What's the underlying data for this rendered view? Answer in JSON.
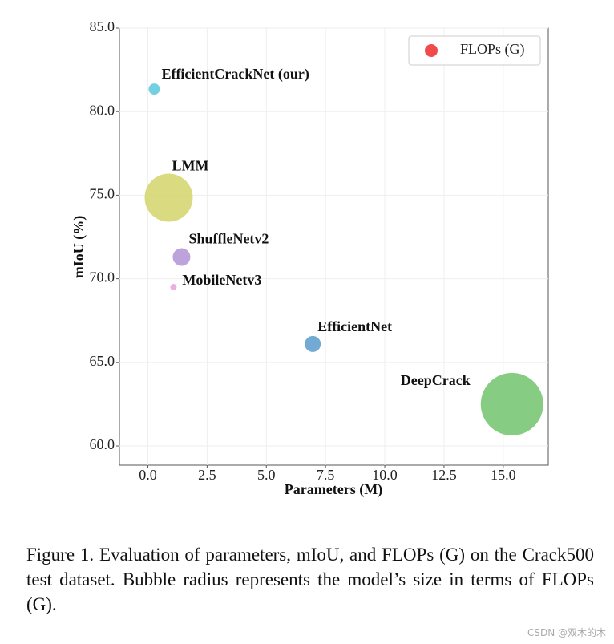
{
  "chart_data": {
    "type": "bubble",
    "xlabel": "Parameters (M)",
    "ylabel": "mIoU (%)",
    "labels": [
      "EfficientCrackNet (our)",
      "LMM",
      "ShuffleNetv2",
      "MobileNetv3",
      "EfficientNet",
      "DeepCrack"
    ],
    "x": [
      0.27,
      0.88,
      1.42,
      1.08,
      6.96,
      15.37
    ],
    "values": [
      81.35,
      74.85,
      71.3,
      69.5,
      66.1,
      62.5
    ],
    "sizes": [
      7,
      30,
      11,
      4,
      10,
      39
    ],
    "colors": [
      "#5bc8dd",
      "#d4d36a",
      "#b293d6",
      "#e7a3d8",
      "#5b9bcc",
      "#72c36d"
    ],
    "legend": {
      "label": "FLOPs (G)",
      "color": "#f04a4a",
      "position": "upper right"
    },
    "xlim": [
      -1.2,
      16.9
    ],
    "ylim": [
      58.85,
      85
    ],
    "xticks": [
      {
        "value": 0,
        "label": "0.0"
      },
      {
        "value": 2.5,
        "label": "2.5"
      },
      {
        "value": 5,
        "label": "5.0"
      },
      {
        "value": 7.5,
        "label": "7.5"
      },
      {
        "value": 10,
        "label": "10.0"
      },
      {
        "value": 12.5,
        "label": "12.5"
      },
      {
        "value": 15,
        "label": "15.0"
      }
    ],
    "yticks": [
      {
        "value": 60,
        "label": "60.0"
      },
      {
        "value": 65,
        "label": "65.0"
      },
      {
        "value": 70,
        "label": "70.0"
      },
      {
        "value": 75,
        "label": "75.0"
      },
      {
        "value": 80,
        "label": "80.0"
      },
      {
        "value": 85,
        "label": "85.0"
      }
    ],
    "grid": true
  },
  "caption": "Figure 1. Evaluation of parameters, mIoU, and FLOPs (G) on the Crack500 test dataset.  Bubble radius represents the model’s size in terms of FLOPs (G).",
  "watermark": "CSDN @双木的木"
}
